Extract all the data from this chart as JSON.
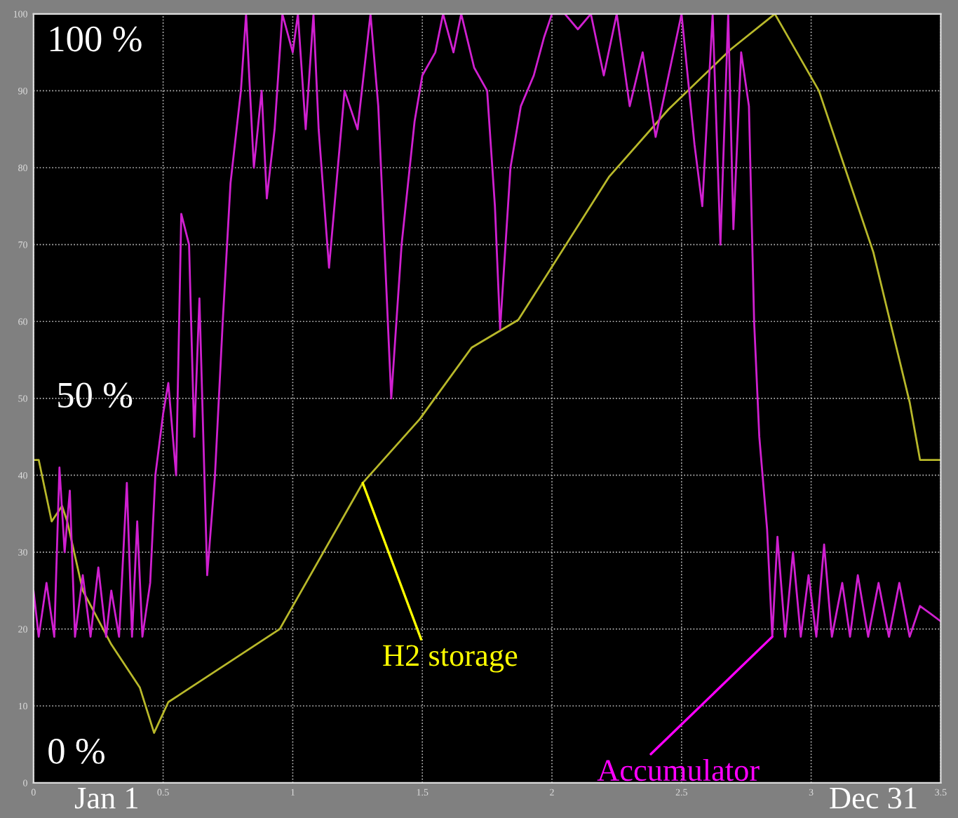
{
  "chart_data": {
    "type": "line",
    "xlim": [
      0,
      3.5
    ],
    "xticks": [
      0,
      0.5,
      1,
      1.5,
      2,
      2.5,
      3,
      3.5
    ],
    "ylim": [
      0,
      100
    ],
    "yticks": [
      0,
      10,
      20,
      30,
      40,
      50,
      60,
      70,
      80,
      90,
      100
    ],
    "grid": true,
    "legend": false,
    "marker": "none",
    "line_style": "solid",
    "series": [
      {
        "color": "#b8b82a",
        "x": [
          0,
          0.02,
          0.07,
          0.11,
          0.13,
          0.19,
          0.3,
          0.41,
          0.465,
          0.52,
          0.95,
          1.27,
          1.49,
          1.69,
          1.87,
          2.22,
          2.45,
          2.69,
          2.86,
          3.03,
          3.24,
          3.38,
          3.42,
          3.5
        ],
        "values": [
          42,
          42,
          34,
          36,
          34,
          25,
          18,
          12.4,
          6.5,
          10.5,
          20,
          39,
          47.3,
          56.6,
          60.2,
          78.8,
          87.6,
          95.4,
          100,
          90,
          69,
          49.5,
          42,
          42
        ]
      },
      {
        "color": "#d020d0",
        "x": [
          0,
          0.02,
          0.05,
          0.08,
          0.1,
          0.12,
          0.14,
          0.16,
          0.19,
          0.22,
          0.25,
          0.28,
          0.3,
          0.33,
          0.36,
          0.38,
          0.4,
          0.42,
          0.45,
          0.47,
          0.5,
          0.52,
          0.55,
          0.57,
          0.6,
          0.62,
          0.64,
          0.67,
          0.7,
          0.73,
          0.76,
          0.8,
          0.82,
          0.85,
          0.88,
          0.9,
          0.93,
          0.96,
          1.0,
          1.02,
          1.05,
          1.08,
          1.1,
          1.14,
          1.2,
          1.25,
          1.3,
          1.33,
          1.38,
          1.42,
          1.47,
          1.5,
          1.55,
          1.58,
          1.62,
          1.65,
          1.7,
          1.75,
          1.78,
          1.8,
          1.84,
          1.88,
          1.93,
          1.97,
          2.0,
          2.05,
          2.1,
          2.15,
          2.2,
          2.25,
          2.3,
          2.35,
          2.4,
          2.45,
          2.5,
          2.55,
          2.58,
          2.62,
          2.65,
          2.68,
          2.7,
          2.73,
          2.76,
          2.78,
          2.8,
          2.83,
          2.85,
          2.87,
          2.9,
          2.93,
          2.96,
          2.99,
          3.02,
          3.05,
          3.08,
          3.12,
          3.15,
          3.18,
          3.22,
          3.26,
          3.3,
          3.34,
          3.38,
          3.42,
          3.46,
          3.5
        ],
        "values": [
          25,
          19,
          26,
          19,
          41,
          30,
          38,
          19,
          27,
          19,
          28,
          19,
          25,
          19,
          39,
          19,
          34,
          19,
          26,
          40,
          48,
          52,
          40,
          74,
          70,
          45,
          63,
          27,
          40,
          60,
          78,
          90,
          100,
          80,
          90,
          76,
          85,
          100,
          95,
          100,
          85,
          100,
          85,
          67,
          90,
          85,
          100,
          88,
          50,
          70,
          86,
          92,
          95,
          100,
          95,
          100,
          93,
          90,
          75,
          59,
          80,
          88,
          92,
          97,
          100,
          100,
          98,
          100,
          92,
          100,
          88,
          95,
          84,
          92,
          100,
          83,
          75,
          100,
          70,
          100,
          72,
          95,
          88,
          60,
          45,
          33,
          19,
          32,
          19,
          30,
          19,
          27,
          19,
          31,
          19,
          26,
          19,
          27,
          19,
          26,
          19,
          26,
          19,
          23,
          22,
          21
        ]
      }
    ],
    "annotations": [
      "100 %",
      "50 %",
      "0 %",
      "Jan 1",
      "Dec 31",
      {
        "text": "H2 storage",
        "x": 1.27,
        "y": 39
      },
      {
        "text": "Accumulator",
        "x": 2.85,
        "y": 19
      }
    ]
  }
}
